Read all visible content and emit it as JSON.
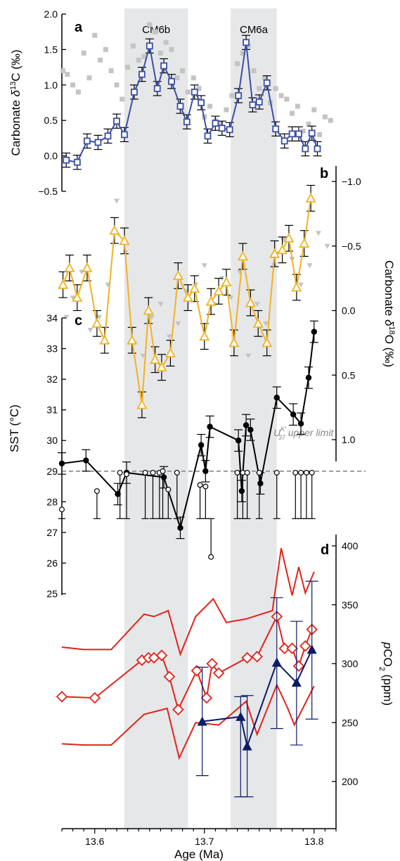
{
  "figure": {
    "x_axis": {
      "label": "Age (Ma)",
      "ticks": [
        13.6,
        13.7,
        13.8
      ],
      "range": [
        13.57,
        13.82
      ]
    },
    "shaded_intervals": [
      {
        "name": "CM6b",
        "from": 13.627,
        "to": 13.685
      },
      {
        "name": "CM6a",
        "from": 13.724,
        "to": 13.766
      }
    ]
  },
  "chart_data": [
    {
      "panel": "a",
      "type": "scatter",
      "ylabel": "Carbonate δ13C (‰)",
      "ylim": [
        -0.5,
        2.0
      ],
      "yticks": [
        -0.5,
        0.0,
        0.5,
        1.0,
        1.5,
        2.0
      ],
      "ytick_labels": [
        "−0.5",
        "0.0",
        "0.5",
        "1.0",
        "1.5",
        "2.0"
      ],
      "color": "#3a4fa6",
      "background_color": "#c4c4c4",
      "x": [
        13.574,
        13.584,
        13.593,
        13.603,
        13.612,
        13.62,
        13.627,
        13.636,
        13.643,
        13.65,
        13.657,
        13.663,
        13.67,
        13.678,
        13.684,
        13.691,
        13.697,
        13.703,
        13.71,
        13.716,
        13.723,
        13.731,
        13.738,
        13.744,
        13.75,
        13.757,
        13.765,
        13.773,
        13.78,
        13.786,
        13.792,
        13.798,
        13.803
      ],
      "y": [
        -0.06,
        -0.09,
        0.21,
        0.19,
        0.28,
        0.49,
        0.3,
        0.9,
        1.15,
        1.55,
        0.95,
        1.27,
        1.05,
        0.7,
        0.48,
        0.9,
        0.75,
        0.28,
        0.46,
        0.39,
        0.37,
        0.85,
        1.6,
        0.72,
        0.76,
        1.03,
        0.38,
        0.21,
        0.31,
        0.31,
        0.1,
        0.32,
        0.1
      ],
      "yerr": 0.1,
      "background_x": [
        13.571,
        13.575,
        13.58,
        13.585,
        13.59,
        13.595,
        13.6,
        13.605,
        13.61,
        13.615,
        13.62,
        13.625,
        13.63,
        13.635,
        13.64,
        13.645,
        13.65,
        13.655,
        13.66,
        13.665,
        13.67,
        13.675,
        13.68,
        13.685,
        13.69,
        13.695,
        13.7,
        13.705,
        13.71,
        13.715,
        13.72,
        13.725,
        13.73,
        13.735,
        13.74,
        13.745,
        13.75,
        13.755,
        13.76,
        13.765,
        13.77,
        13.775,
        13.78,
        13.785,
        13.79,
        13.795,
        13.8,
        13.805,
        13.81,
        13.815
      ],
      "background_y": [
        1.2,
        1.15,
        1.0,
        0.9,
        1.45,
        1.1,
        1.7,
        1.35,
        1.5,
        1.2,
        1.0,
        0.8,
        1.25,
        1.55,
        1.35,
        1.4,
        1.85,
        1.75,
        1.45,
        1.6,
        1.5,
        1.1,
        1.2,
        0.9,
        1.1,
        0.95,
        0.55,
        0.7,
        0.5,
        0.45,
        0.65,
        0.85,
        1.3,
        1.45,
        1.55,
        1.2,
        0.95,
        1.1,
        0.75,
        0.95,
        0.85,
        0.8,
        0.6,
        0.7,
        0.35,
        0.45,
        0.65,
        0.3,
        0.55,
        0.5
      ]
    },
    {
      "panel": "b",
      "type": "scatter",
      "ylabel": "Carbonate δ18O (‰)",
      "ylim": [
        1.0,
        -1.1
      ],
      "yticks": [
        1.0,
        0.5,
        0.0,
        -0.5,
        -1.0
      ],
      "ytick_labels": [
        "1.0",
        "0.5",
        "0.0",
        "−0.5",
        "−1.0"
      ],
      "color": "#f0b323",
      "background_color": "#c4c4c4",
      "x": [
        13.571,
        13.577,
        13.584,
        13.593,
        13.602,
        13.609,
        13.618,
        13.627,
        13.634,
        13.643,
        13.649,
        13.655,
        13.661,
        13.669,
        13.676,
        13.685,
        13.691,
        13.7,
        13.706,
        13.713,
        13.72,
        13.727,
        13.735,
        13.742,
        13.749,
        13.757,
        13.764,
        13.771,
        13.777,
        13.784,
        13.791,
        13.797
      ],
      "y": [
        -0.2,
        -0.33,
        -0.1,
        -0.33,
        0.1,
        0.23,
        -0.62,
        -0.54,
        0.23,
        0.73,
        0.0,
        0.38,
        0.44,
        0.33,
        -0.27,
        -0.1,
        -0.17,
        0.2,
        -0.07,
        -0.15,
        -0.22,
        0.25,
        -0.42,
        -0.06,
        0.1,
        0.25,
        -0.44,
        -0.47,
        -0.56,
        -0.18,
        -0.52,
        -0.87
      ],
      "yerr": 0.1,
      "background_x": [
        13.574,
        13.58,
        13.588,
        13.596,
        13.604,
        13.612,
        13.62,
        13.628,
        13.636,
        13.644,
        13.652,
        13.66,
        13.668,
        13.676,
        13.684,
        13.692,
        13.7,
        13.708,
        13.716,
        13.724,
        13.732,
        13.74,
        13.748,
        13.756,
        13.764,
        13.772,
        13.78,
        13.788,
        13.796,
        13.804,
        13.812
      ],
      "background_y": [
        0.05,
        -0.1,
        -0.3,
        0.15,
        0.05,
        -0.2,
        -0.85,
        -0.45,
        0.25,
        0.35,
        0.05,
        -0.05,
        0.2,
        0.1,
        -0.15,
        -0.2,
        -0.35,
        -0.05,
        -0.25,
        -0.1,
        -0.3,
        0.35,
        -0.05,
        0.1,
        -0.35,
        -0.55,
        -0.4,
        -0.2,
        -0.35,
        -0.6,
        -0.5
      ]
    },
    {
      "panel": "c",
      "type": "scatter",
      "ylabel": "SST (°C)",
      "ylim": [
        25,
        34
      ],
      "yticks": [
        25,
        26,
        27,
        28,
        29,
        30,
        31,
        32,
        33,
        34
      ],
      "annotation": "U37K′ upper limit",
      "upper_limit": 29.0,
      "series": [
        {
          "marker": "filled circle",
          "x": [
            13.57,
            13.592,
            13.621,
            13.629,
            13.663,
            13.678,
            13.697,
            13.701,
            13.705,
            13.731,
            13.734,
            13.738,
            13.742,
            13.751,
            13.766,
            13.781,
            13.788,
            13.795,
            13.8
          ],
          "y": [
            29.25,
            29.35,
            28.25,
            28.95,
            28.8,
            27.15,
            29.85,
            29.0,
            30.45,
            30.0,
            28.35,
            30.5,
            30.35,
            28.6,
            31.4,
            30.85,
            30.55,
            32.05,
            33.55
          ],
          "yerr": 0.35
        },
        {
          "marker": "open circle",
          "x": [
            13.57,
            13.602,
            13.623,
            13.629,
            13.646,
            13.653,
            13.659,
            13.662,
            13.667,
            13.675,
            13.696,
            13.701,
            13.706,
            13.73,
            13.735,
            13.739,
            13.75,
            13.766,
            13.783,
            13.788,
            13.793,
            13.798
          ],
          "y": [
            27.75,
            28.35,
            28.95,
            28.9,
            28.95,
            28.95,
            28.95,
            29.0,
            28.4,
            28.95,
            28.55,
            28.5,
            26.2,
            28.95,
            28.95,
            28.95,
            28.95,
            28.95,
            28.95,
            28.95,
            28.95,
            28.95
          ],
          "lower_bar_to": 27.45
        }
      ]
    },
    {
      "panel": "d",
      "type": "line",
      "ylabel": "pCO2 (ppm)",
      "ylim": [
        180,
        420
      ],
      "yticks": [
        200,
        250,
        300,
        350,
        400
      ],
      "series": [
        {
          "name": "",
          "color": "#e2231a",
          "role": "upper bound",
          "x": [
            13.57,
            13.59,
            13.615,
            13.645,
            13.654,
            13.667,
            13.678,
            13.692,
            13.708,
            13.72,
            13.738,
            13.762,
            13.77,
            13.78,
            13.786,
            13.792,
            13.8
          ],
          "y": [
            314,
            312,
            312,
            342,
            340,
            345,
            308,
            340,
            355,
            335,
            338,
            345,
            398,
            358,
            382,
            360,
            378
          ]
        },
        {
          "name": "",
          "color": "#e2231a",
          "role": "central estimate",
          "x": [
            13.57,
            13.6,
            13.643,
            13.649,
            13.654,
            13.661,
            13.668,
            13.676,
            13.693,
            13.702,
            13.707,
            13.713,
            13.739,
            13.748,
            13.766,
            13.773,
            13.78,
            13.786,
            13.792,
            13.798
          ],
          "y": [
            272,
            271,
            303,
            305,
            305,
            307,
            289,
            261,
            294,
            271,
            300,
            292,
            305,
            306,
            340,
            313,
            313,
            298,
            315,
            329
          ]
        },
        {
          "name": "",
          "color": "#e2231a",
          "role": "lower bound",
          "x": [
            13.57,
            13.59,
            13.615,
            13.645,
            13.666,
            13.677,
            13.692,
            13.713,
            13.738,
            13.748,
            13.766,
            13.776,
            13.782,
            13.8
          ],
          "y": [
            232,
            231,
            231,
            257,
            262,
            220,
            250,
            248,
            268,
            240,
            282,
            262,
            248,
            281
          ]
        },
        {
          "name": "",
          "color": "#0b1a66",
          "marker": "filled triangle",
          "x": [
            13.698,
            13.733,
            13.739,
            13.766,
            13.784,
            13.798
          ],
          "y": [
            251,
            255,
            230,
            301,
            284,
            312
          ],
          "yerr_low": [
            46,
            68,
            43,
            56,
            53,
            59
          ],
          "yerr_high": [
            46,
            17,
            43,
            55,
            52,
            58
          ]
        }
      ]
    }
  ]
}
